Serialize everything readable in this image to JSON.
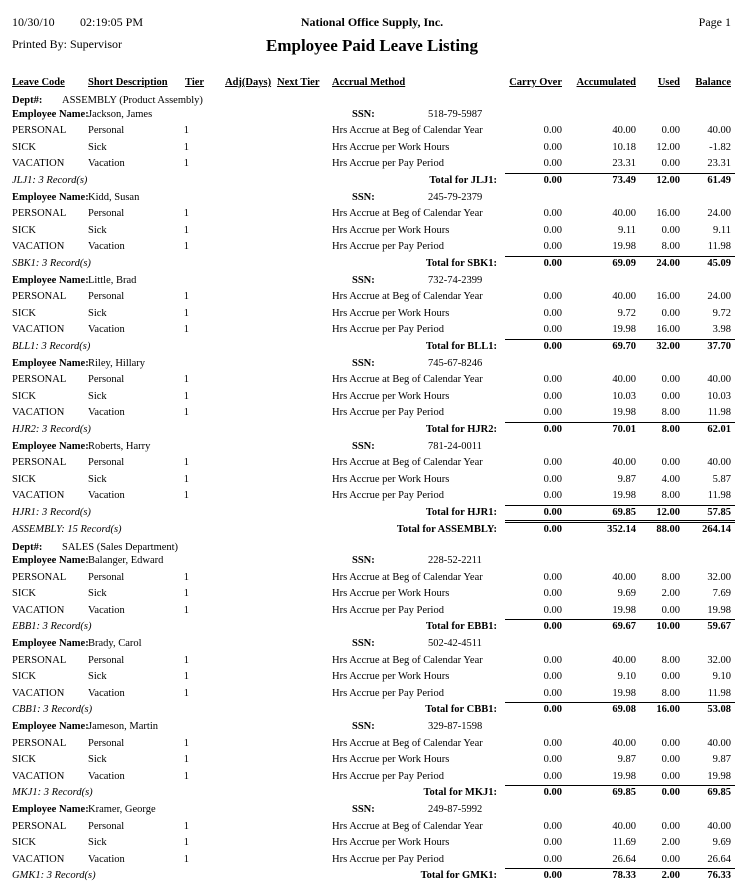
{
  "header": {
    "date": "10/30/10",
    "time": "02:19:05 PM",
    "company": "National Office Supply, Inc.",
    "page": "Page 1",
    "printed_by": "Printed By: Supervisor",
    "title": "Employee Paid Leave Listing"
  },
  "columns": [
    "Leave Code",
    "Short Description",
    "Tier",
    "Adj(Days)",
    "Next Tier",
    "Accrual Method",
    "Carry Over",
    "Accumulated",
    "Used",
    "Balance"
  ],
  "labels": {
    "dept": "Dept#:",
    "employee": "Employee Name:",
    "ssn": "SSN:"
  },
  "departments": [
    {
      "name": "ASSEMBLY (Product Assembly)",
      "employees": [
        {
          "name": "Jackson, James",
          "ssn": "518-79-5987",
          "rows": [
            [
              "PERSONAL",
              "Personal",
              "1",
              "Hrs Accrue at Beg of Calendar Year",
              "0.00",
              "40.00",
              "0.00",
              "40.00"
            ],
            [
              "SICK",
              "Sick",
              "1",
              "Hrs Accrue per Work Hours",
              "0.00",
              "10.18",
              "12.00",
              "-1.82"
            ],
            [
              "VACATION",
              "Vacation",
              "1",
              "Hrs Accrue per Pay Period",
              "0.00",
              "23.31",
              "0.00",
              "23.31"
            ]
          ],
          "footer": "JLJ1: 3 Record(s)",
          "total_label": "Total for JLJ1:",
          "totals": [
            "0.00",
            "73.49",
            "12.00",
            "61.49"
          ]
        },
        {
          "name": "Kidd, Susan",
          "ssn": "245-79-2379",
          "rows": [
            [
              "PERSONAL",
              "Personal",
              "1",
              "Hrs Accrue at Beg of Calendar Year",
              "0.00",
              "40.00",
              "16.00",
              "24.00"
            ],
            [
              "SICK",
              "Sick",
              "1",
              "Hrs Accrue per Work Hours",
              "0.00",
              "9.11",
              "0.00",
              "9.11"
            ],
            [
              "VACATION",
              "Vacation",
              "1",
              "Hrs Accrue per Pay Period",
              "0.00",
              "19.98",
              "8.00",
              "11.98"
            ]
          ],
          "footer": "SBK1: 3 Record(s)",
          "total_label": "Total for SBK1:",
          "totals": [
            "0.00",
            "69.09",
            "24.00",
            "45.09"
          ]
        },
        {
          "name": "Little, Brad",
          "ssn": "732-74-2399",
          "rows": [
            [
              "PERSONAL",
              "Personal",
              "1",
              "Hrs Accrue at Beg of Calendar Year",
              "0.00",
              "40.00",
              "16.00",
              "24.00"
            ],
            [
              "SICK",
              "Sick",
              "1",
              "Hrs Accrue per Work Hours",
              "0.00",
              "9.72",
              "0.00",
              "9.72"
            ],
            [
              "VACATION",
              "Vacation",
              "1",
              "Hrs Accrue per Pay Period",
              "0.00",
              "19.98",
              "16.00",
              "3.98"
            ]
          ],
          "footer": "BLL1: 3 Record(s)",
          "total_label": "Total for BLL1:",
          "totals": [
            "0.00",
            "69.70",
            "32.00",
            "37.70"
          ]
        },
        {
          "name": "Riley, Hillary",
          "ssn": "745-67-8246",
          "rows": [
            [
              "PERSONAL",
              "Personal",
              "1",
              "Hrs Accrue at Beg of Calendar Year",
              "0.00",
              "40.00",
              "0.00",
              "40.00"
            ],
            [
              "SICK",
              "Sick",
              "1",
              "Hrs Accrue per Work Hours",
              "0.00",
              "10.03",
              "0.00",
              "10.03"
            ],
            [
              "VACATION",
              "Vacation",
              "1",
              "Hrs Accrue per Pay Period",
              "0.00",
              "19.98",
              "8.00",
              "11.98"
            ]
          ],
          "footer": "HJR2: 3 Record(s)",
          "total_label": "Total for HJR2:",
          "totals": [
            "0.00",
            "70.01",
            "8.00",
            "62.01"
          ]
        },
        {
          "name": "Roberts, Harry",
          "ssn": "781-24-0011",
          "rows": [
            [
              "PERSONAL",
              "Personal",
              "1",
              "Hrs Accrue at Beg of Calendar Year",
              "0.00",
              "40.00",
              "0.00",
              "40.00"
            ],
            [
              "SICK",
              "Sick",
              "1",
              "Hrs Accrue per Work Hours",
              "0.00",
              "9.87",
              "4.00",
              "5.87"
            ],
            [
              "VACATION",
              "Vacation",
              "1",
              "Hrs Accrue per Pay Period",
              "0.00",
              "19.98",
              "8.00",
              "11.98"
            ]
          ],
          "footer": "HJR1: 3 Record(s)",
          "total_label": "Total for HJR1:",
          "totals": [
            "0.00",
            "69.85",
            "12.00",
            "57.85"
          ]
        }
      ],
      "footer": "ASSEMBLY: 15 Record(s)",
      "total_label": "Total for ASSEMBLY:",
      "totals": [
        "0.00",
        "352.14",
        "88.00",
        "264.14"
      ]
    },
    {
      "name": "SALES (Sales Department)",
      "employees": [
        {
          "name": "Balanger, Edward",
          "ssn": "228-52-2211",
          "rows": [
            [
              "PERSONAL",
              "Personal",
              "1",
              "Hrs Accrue at Beg of Calendar Year",
              "0.00",
              "40.00",
              "8.00",
              "32.00"
            ],
            [
              "SICK",
              "Sick",
              "1",
              "Hrs Accrue per Work Hours",
              "0.00",
              "9.69",
              "2.00",
              "7.69"
            ],
            [
              "VACATION",
              "Vacation",
              "1",
              "Hrs Accrue per Pay Period",
              "0.00",
              "19.98",
              "0.00",
              "19.98"
            ]
          ],
          "footer": "EBB1: 3 Record(s)",
          "total_label": "Total for EBB1:",
          "totals": [
            "0.00",
            "69.67",
            "10.00",
            "59.67"
          ]
        },
        {
          "name": "Brady, Carol",
          "ssn": "502-42-4511",
          "rows": [
            [
              "PERSONAL",
              "Personal",
              "1",
              "Hrs Accrue at Beg of Calendar Year",
              "0.00",
              "40.00",
              "8.00",
              "32.00"
            ],
            [
              "SICK",
              "Sick",
              "1",
              "Hrs Accrue per Work Hours",
              "0.00",
              "9.10",
              "0.00",
              "9.10"
            ],
            [
              "VACATION",
              "Vacation",
              "1",
              "Hrs Accrue per Pay Period",
              "0.00",
              "19.98",
              "8.00",
              "11.98"
            ]
          ],
          "footer": "CBB1: 3 Record(s)",
          "total_label": "Total for CBB1:",
          "totals": [
            "0.00",
            "69.08",
            "16.00",
            "53.08"
          ]
        },
        {
          "name": "Jameson, Martin",
          "ssn": "329-87-1598",
          "rows": [
            [
              "PERSONAL",
              "Personal",
              "1",
              "Hrs Accrue at Beg of Calendar Year",
              "0.00",
              "40.00",
              "0.00",
              "40.00"
            ],
            [
              "SICK",
              "Sick",
              "1",
              "Hrs Accrue per Work Hours",
              "0.00",
              "9.87",
              "0.00",
              "9.87"
            ],
            [
              "VACATION",
              "Vacation",
              "1",
              "Hrs Accrue per Pay Period",
              "0.00",
              "19.98",
              "0.00",
              "19.98"
            ]
          ],
          "footer": "MKJ1: 3 Record(s)",
          "total_label": "Total for MKJ1:",
          "totals": [
            "0.00",
            "69.85",
            "0.00",
            "69.85"
          ]
        },
        {
          "name": "Kramer, George",
          "ssn": "249-87-5992",
          "rows": [
            [
              "PERSONAL",
              "Personal",
              "1",
              "Hrs Accrue at Beg of Calendar Year",
              "0.00",
              "40.00",
              "0.00",
              "40.00"
            ],
            [
              "SICK",
              "Sick",
              "1",
              "Hrs Accrue per Work Hours",
              "0.00",
              "11.69",
              "2.00",
              "9.69"
            ],
            [
              "VACATION",
              "Vacation",
              "1",
              "Hrs Accrue per Pay Period",
              "0.00",
              "26.64",
              "0.00",
              "26.64"
            ]
          ],
          "footer": "GMK1: 3 Record(s)",
          "total_label": "Total for GMK1:",
          "totals": [
            "0.00",
            "78.33",
            "2.00",
            "76.33"
          ]
        }
      ]
    }
  ]
}
